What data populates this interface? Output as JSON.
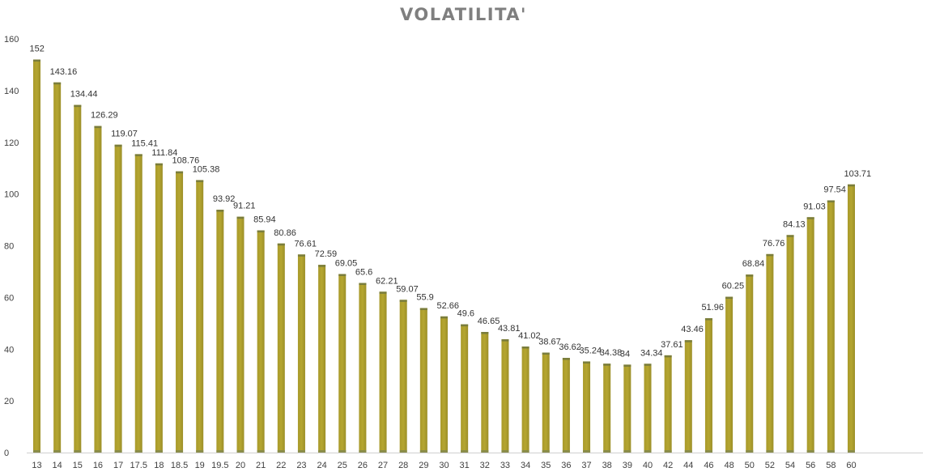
{
  "chart_data": {
    "type": "bar",
    "title": "VOLATILITA'",
    "xlabel": "",
    "ylabel": "",
    "ylim": [
      0,
      160
    ],
    "yticks": [
      0,
      20,
      40,
      60,
      80,
      100,
      120,
      140,
      160
    ],
    "grid": false,
    "legend": "none",
    "bar_color": "#b5a631",
    "bar_edge_color": "#7a7d3c",
    "title_color": "#7f7f7f",
    "categories": [
      "13",
      "14",
      "15",
      "16",
      "17",
      "17.5",
      "18",
      "18.5",
      "19",
      "19.5",
      "20",
      "21",
      "22",
      "23",
      "24",
      "25",
      "26",
      "27",
      "28",
      "29",
      "30",
      "31",
      "32",
      "33",
      "34",
      "35",
      "36",
      "37",
      "38",
      "39",
      "40",
      "42",
      "44",
      "46",
      "48",
      "50",
      "52",
      "54",
      "56",
      "58",
      "60"
    ],
    "values": [
      152,
      143.16,
      134.44,
      126.29,
      119.07,
      115.41,
      111.84,
      108.76,
      105.38,
      93.92,
      91.21,
      85.94,
      80.86,
      76.61,
      72.59,
      69.05,
      65.6,
      62.21,
      59.07,
      55.9,
      52.66,
      49.6,
      46.65,
      43.81,
      41.02,
      38.67,
      36.62,
      35.24,
      34.38,
      34,
      34.34,
      37.61,
      43.46,
      51.96,
      60.25,
      68.84,
      76.76,
      84.13,
      91.03,
      97.54,
      103.71
    ]
  }
}
